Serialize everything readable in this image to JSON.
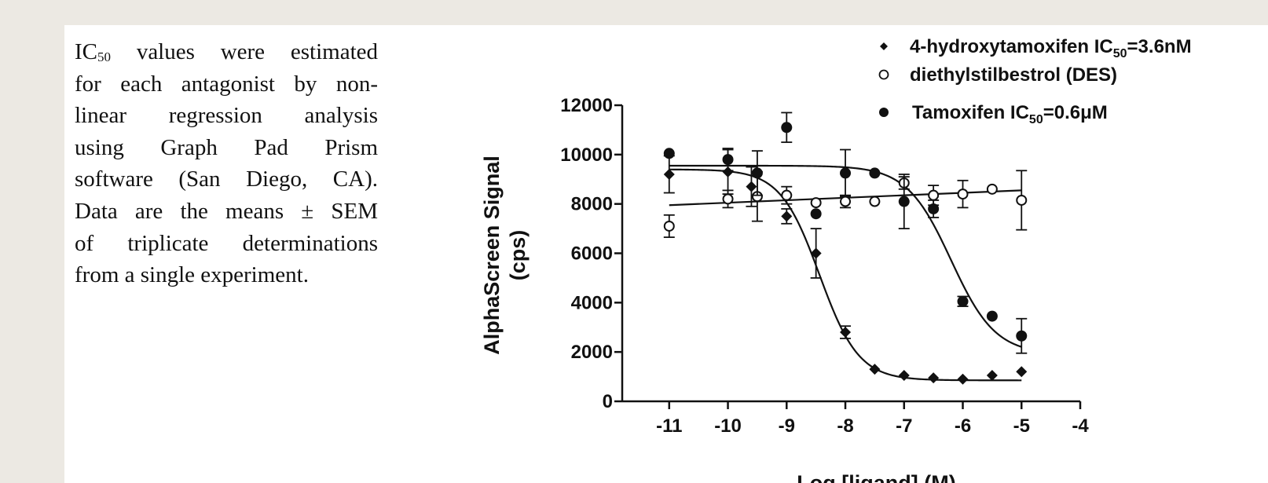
{
  "caption": {
    "lines": [
      {
        "pre": "IC",
        "sub": "50",
        "post": " values were estimated"
      },
      {
        "pre": "for each antagonist by non-"
      },
      {
        "pre": "linear regression analysis"
      },
      {
        "pre": "using Graph Pad Prism"
      },
      {
        "pre": "software (San Diego, CA)."
      },
      {
        "pre": "Data are the means ± SEM"
      },
      {
        "pre": "of triplicate determinations"
      },
      {
        "pre": "from a single experiment."
      }
    ]
  },
  "chart_data": {
    "type": "scatter",
    "xlabel": "Log [ligand] (M)",
    "ylabel_lines": [
      "AlphaScreen Signal",
      "(cps)"
    ],
    "xlim": [
      -11.8,
      -4
    ],
    "ylim": [
      0,
      12000
    ],
    "xticks": [
      "-11",
      "-10",
      "-9",
      "-8",
      "-7",
      "-6",
      "-5",
      "-4"
    ],
    "yticks": [
      "0",
      "2000",
      "4000",
      "6000",
      "8000",
      "10000",
      "12000"
    ],
    "grid": false,
    "legend_position": "top-right",
    "series": [
      {
        "label_pre": "4-hydroxytamoxifen IC",
        "label_sub": "50",
        "label_post": "=3.6nM",
        "marker": "diamond-filled",
        "fit": {
          "top": 9400,
          "bottom": 850,
          "log_ic50": -8.44,
          "hill": -1.3
        },
        "points": [
          {
            "x": -11,
            "y": 9200,
            "err": 750
          },
          {
            "x": -10,
            "y": 9300,
            "err": 900
          },
          {
            "x": -9.6,
            "y": 8700,
            "err": 800
          },
          {
            "x": -9,
            "y": 7500,
            "err": 300
          },
          {
            "x": -8.5,
            "y": 6000,
            "err": 1000
          },
          {
            "x": -8,
            "y": 2800,
            "err": 250
          },
          {
            "x": -7.5,
            "y": 1300,
            "err": 0
          },
          {
            "x": -7,
            "y": 1050,
            "err": 0
          },
          {
            "x": -6.5,
            "y": 950,
            "err": 0
          },
          {
            "x": -6,
            "y": 900,
            "err": 0
          },
          {
            "x": -5.5,
            "y": 1050,
            "err": 0
          },
          {
            "x": -5,
            "y": 1200,
            "err": 0
          }
        ]
      },
      {
        "label_pre": "diethylstilbestrol (DES)",
        "marker": "circle-open",
        "fit": {
          "line": [
            [
              -11,
              7950
            ],
            [
              -5,
              8550
            ]
          ]
        },
        "points": [
          {
            "x": -11,
            "y": 7100,
            "err": 450
          },
          {
            "x": -10,
            "y": 8200,
            "err": 350
          },
          {
            "x": -9.5,
            "y": 8300,
            "err": 1000
          },
          {
            "x": -9,
            "y": 8350,
            "err": 350
          },
          {
            "x": -8.5,
            "y": 8050,
            "err": 0
          },
          {
            "x": -8,
            "y": 8100,
            "err": 250
          },
          {
            "x": -7.5,
            "y": 8100,
            "err": 0
          },
          {
            "x": -7,
            "y": 8850,
            "err": 250
          },
          {
            "x": -6.5,
            "y": 8350,
            "err": 400
          },
          {
            "x": -6,
            "y": 8400,
            "err": 550
          },
          {
            "x": -5.5,
            "y": 8600,
            "err": 0
          },
          {
            "x": -5,
            "y": 8150,
            "err": 1200
          }
        ]
      },
      {
        "label_pre": "Tamoxifen IC",
        "label_sub": "50",
        "label_post": "=0.6μM",
        "marker": "circle-filled",
        "fit": {
          "top": 9550,
          "bottom": 1900,
          "log_ic50": -6.2,
          "hill": -1.15
        },
        "points": [
          {
            "x": -11,
            "y": 10050,
            "err": 0
          },
          {
            "x": -10,
            "y": 9800,
            "err": 450
          },
          {
            "x": -9.5,
            "y": 9250,
            "err": 900
          },
          {
            "x": -9,
            "y": 11100,
            "err": 600
          },
          {
            "x": -8.5,
            "y": 7600,
            "err": 0
          },
          {
            "x": -8,
            "y": 9250,
            "err": 950
          },
          {
            "x": -7.5,
            "y": 9250,
            "err": 0
          },
          {
            "x": -7,
            "y": 8100,
            "err": 1100
          },
          {
            "x": -6.5,
            "y": 7800,
            "err": 350
          },
          {
            "x": -6,
            "y": 4050,
            "err": 200
          },
          {
            "x": -5.5,
            "y": 3450,
            "err": 0
          },
          {
            "x": -5,
            "y": 2650,
            "err": 700
          }
        ]
      }
    ]
  }
}
